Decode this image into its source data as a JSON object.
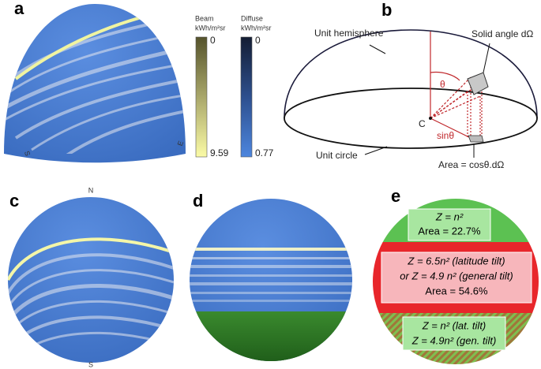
{
  "panel_a": {
    "label": "a",
    "compass": [
      "S",
      "E"
    ],
    "beam_bar": {
      "title": "Beam",
      "unit": "kWh/m²sr",
      "max_label": "0",
      "min_label": "9.59"
    },
    "diffuse_bar": {
      "title": "Diffuse",
      "unit": "kWh/m²sr",
      "max_label": "0",
      "min_label": "0.77"
    }
  },
  "panel_b": {
    "label": "b",
    "hemisphere": "Unit hemisphere",
    "solid_angle": "Solid angle dΩ",
    "theta": "θ",
    "center": "C",
    "sin_theta": "sinθ",
    "circle": "Unit circle",
    "area": "Area = cosθ.dΩ"
  },
  "panel_c": {
    "label": "c",
    "north": "N",
    "south": "S"
  },
  "panel_d": {
    "label": "d"
  },
  "panel_e": {
    "label": "e",
    "top": [
      "Z = n²",
      "Area = 22.7%"
    ],
    "middle": [
      "Z = 6.5n² (latitude tilt)",
      "or Z = 4.9 n² (general tilt)",
      "Area = 54.6%"
    ],
    "bottom": [
      "Z = n² (lat. tilt)",
      "Z = 4.9n² (gen. tilt)"
    ]
  }
}
